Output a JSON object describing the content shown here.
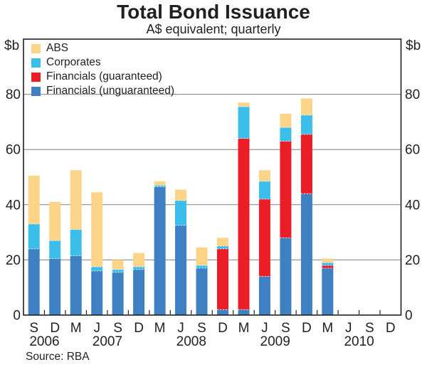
{
  "header": {
    "title": "Total Bond Issuance",
    "subtitle": "A$ equivalent; quarterly"
  },
  "axes": {
    "unit": "$b"
  },
  "footer": {
    "source": "Source: RBA"
  },
  "chart_data": {
    "type": "bar",
    "stacked": true,
    "title": "Total Bond Issuance",
    "subtitle": "A$ equivalent; quarterly",
    "ylabel": "$b",
    "ylim": [
      0,
      100
    ],
    "y_ticks": [
      0,
      20,
      40,
      60,
      80
    ],
    "grid": true,
    "legend_position": "top-left",
    "categories": [
      "S",
      "D",
      "M",
      "J",
      "S",
      "D",
      "M",
      "J",
      "S",
      "D",
      "M",
      "J",
      "S",
      "D",
      "M",
      "J",
      "S",
      "D"
    ],
    "year_labels": [
      {
        "label": "2006",
        "boundary_index": 1
      },
      {
        "label": "2007",
        "boundary_index": 4
      },
      {
        "label": "2008",
        "boundary_index": 8
      },
      {
        "label": "2009",
        "boundary_index": 12
      },
      {
        "label": "2010",
        "boundary_index": 16
      }
    ],
    "series": [
      {
        "name": "Financials (unguaranteed)",
        "color": "#3E80C2",
        "values": [
          24,
          20.5,
          21.5,
          16,
          15.5,
          16.5,
          46.5,
          32.5,
          17,
          2,
          2,
          14,
          28,
          44,
          17,
          0,
          0,
          0
        ]
      },
      {
        "name": "Financials (guaranteed)",
        "color": "#EB1E28",
        "values": [
          0,
          0,
          0,
          0,
          0,
          0,
          0,
          0,
          0,
          22,
          62,
          28,
          35,
          21.5,
          1,
          0,
          0,
          0
        ]
      },
      {
        "name": "Corporates",
        "color": "#3CBEEA",
        "values": [
          9,
          6.5,
          9.5,
          1.5,
          1,
          1,
          0.5,
          9,
          1,
          1,
          11.5,
          6.5,
          5,
          7,
          1,
          0,
          0,
          0
        ]
      },
      {
        "name": "ABS",
        "color": "#FCD488",
        "values": [
          17.5,
          14,
          21.5,
          27,
          3.5,
          5,
          1.5,
          4,
          6.5,
          3,
          1.5,
          4,
          5,
          6,
          1.5,
          0,
          0,
          0
        ]
      }
    ]
  }
}
